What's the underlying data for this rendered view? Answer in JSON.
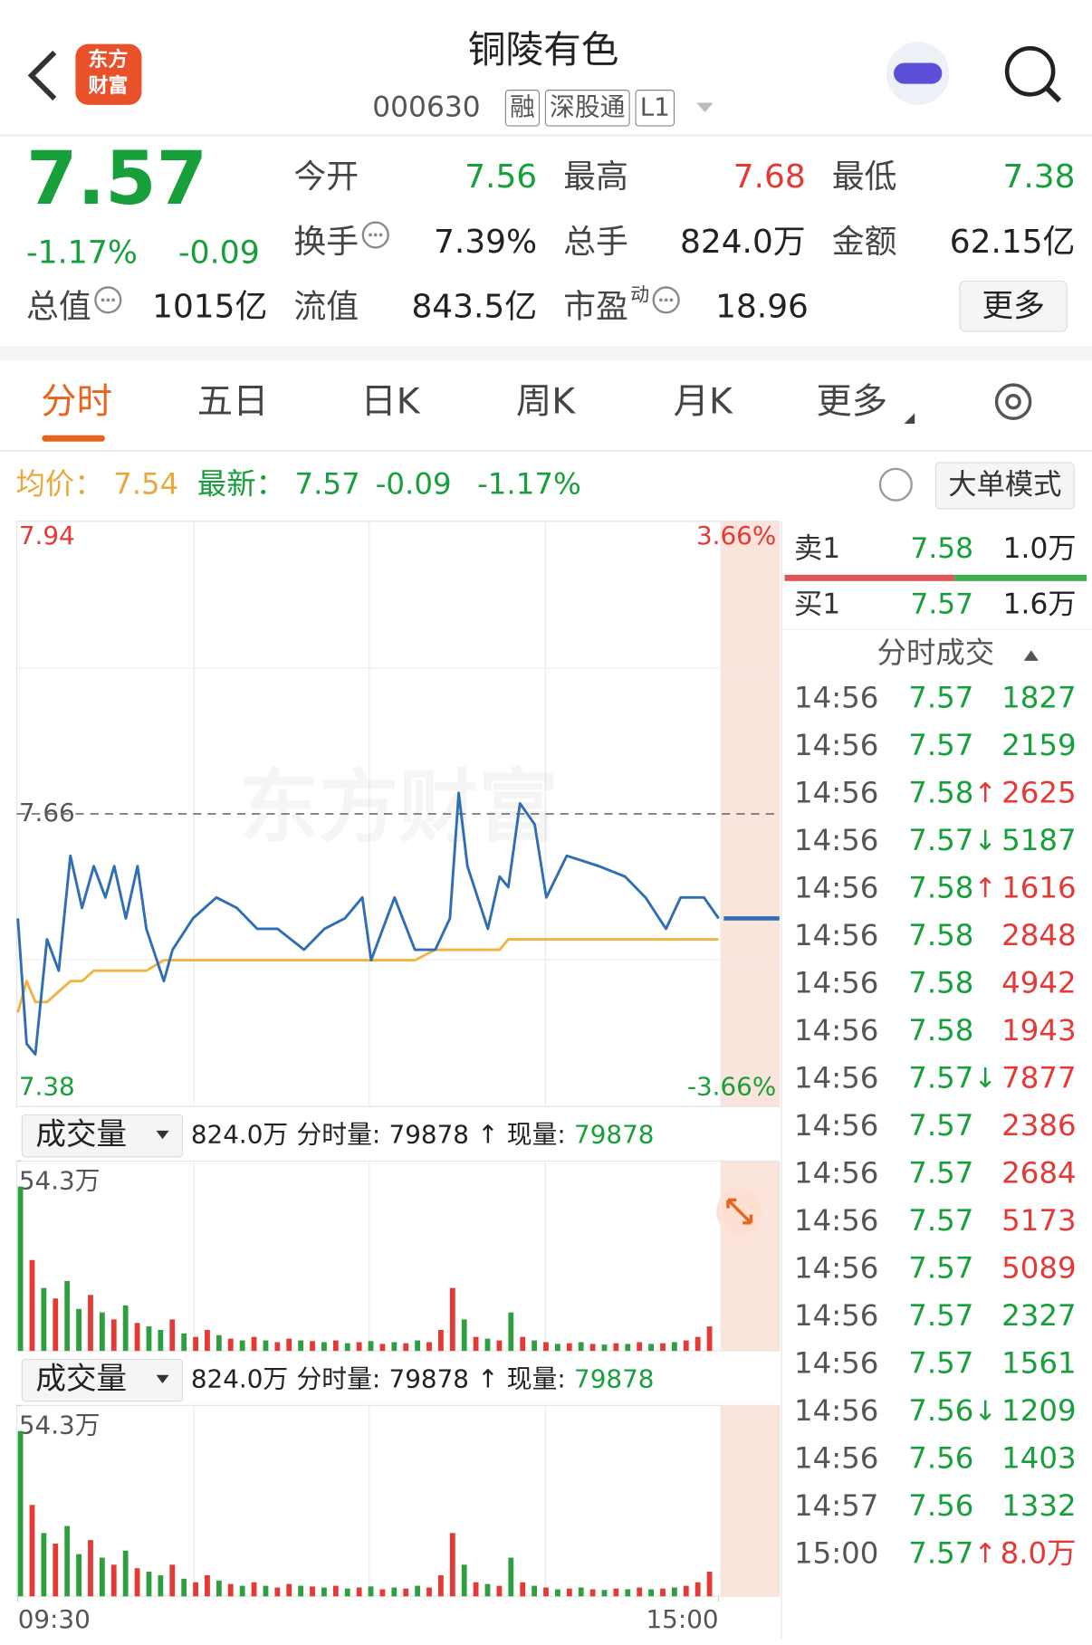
{
  "header": {
    "title": "铜陵有色",
    "code": "000630",
    "tags": [
      "融",
      "深股通",
      "L1"
    ],
    "logo": [
      "东方",
      "财富"
    ]
  },
  "quote": {
    "price": "7.57",
    "change_pct": "-1.17%",
    "change": "-0.09",
    "stats": [
      {
        "label": "今开",
        "value": "7.56",
        "color": "#17a03a"
      },
      {
        "label": "最高",
        "value": "7.68",
        "color": "#e53935"
      },
      {
        "label": "最低",
        "value": "7.38",
        "color": "#17a03a"
      },
      {
        "label": "换手",
        "value": "7.39%"
      },
      {
        "label": "总手",
        "value": "824.0万"
      },
      {
        "label": "金额",
        "value": "62.15亿"
      },
      {
        "label": "总值",
        "value": "1015亿"
      },
      {
        "label": "流值",
        "value": "843.5亿"
      },
      {
        "label": "市盈",
        "label_sup": "动",
        "value": "18.96"
      }
    ],
    "more": "更多"
  },
  "tabs": [
    "分时",
    "五日",
    "日K",
    "周K",
    "月K",
    "更多"
  ],
  "info_bar": {
    "avg_label": "均价：",
    "avg": "7.54",
    "latest_label": "最新：",
    "latest": "7.57",
    "change": "-0.09",
    "change_pct": "-1.17%",
    "mode_button": "大单模式"
  },
  "order_book": [
    {
      "label": "卖1",
      "price": "7.58",
      "volume": "1.0万"
    },
    {
      "label": "买1",
      "price": "7.57",
      "volume": "1.6万"
    }
  ],
  "trades": {
    "title": "分时成交",
    "rows": [
      {
        "time": "14:56",
        "price": "7.57",
        "volume": "1827",
        "color": "#17a03a"
      },
      {
        "time": "14:56",
        "price": "7.57",
        "volume": "2159",
        "color": "#17a03a"
      },
      {
        "time": "14:56",
        "price": "7.58",
        "arrow": "↑",
        "arrow_color": "#e53935",
        "volume": "2625",
        "color": "#e53935"
      },
      {
        "time": "14:56",
        "price": "7.57",
        "arrow": "↓",
        "arrow_color": "#17a03a",
        "volume": "5187",
        "color": "#17a03a"
      },
      {
        "time": "14:56",
        "price": "7.58",
        "arrow": "↑",
        "arrow_color": "#e53935",
        "volume": "1616",
        "color": "#e53935"
      },
      {
        "time": "14:56",
        "price": "7.58",
        "volume": "2848",
        "color": "#e53935"
      },
      {
        "time": "14:56",
        "price": "7.58",
        "volume": "4942",
        "color": "#e53935"
      },
      {
        "time": "14:56",
        "price": "7.58",
        "volume": "1943",
        "color": "#e53935"
      },
      {
        "time": "14:56",
        "price": "7.57",
        "arrow": "↓",
        "arrow_color": "#17a03a",
        "volume": "7877",
        "color": "#e53935"
      },
      {
        "time": "14:56",
        "price": "7.57",
        "volume": "2386",
        "color": "#e53935"
      },
      {
        "time": "14:56",
        "price": "7.57",
        "volume": "2684",
        "color": "#e53935"
      },
      {
        "time": "14:56",
        "price": "7.57",
        "volume": "5173",
        "color": "#e53935"
      },
      {
        "time": "14:56",
        "price": "7.57",
        "volume": "5089",
        "color": "#e53935"
      },
      {
        "time": "14:56",
        "price": "7.57",
        "volume": "2327",
        "color": "#17a03a"
      },
      {
        "time": "14:56",
        "price": "7.57",
        "volume": "1561",
        "color": "#17a03a"
      },
      {
        "time": "14:56",
        "price": "7.56",
        "arrow": "↓",
        "arrow_color": "#17a03a",
        "volume": "1209",
        "color": "#17a03a"
      },
      {
        "time": "14:56",
        "price": "7.56",
        "volume": "1403",
        "color": "#17a03a"
      },
      {
        "time": "14:57",
        "price": "7.56",
        "volume": "1332",
        "color": "#17a03a"
      },
      {
        "time": "15:00",
        "price": "7.57",
        "arrow": "↑",
        "arrow_color": "#e53935",
        "volume": "8.0万",
        "color": "#e53935"
      }
    ]
  },
  "chart_data": [
    {
      "type": "line",
      "watermark": "东方财富",
      "xlim": [
        0,
        240
      ],
      "ylim": [
        7.38,
        7.94
      ],
      "yticks": [
        7.38,
        7.66,
        7.94
      ],
      "reference": 7.66,
      "y2lim": [
        -3.66,
        3.66
      ],
      "y2ticks": [
        {
          "value": -3.66,
          "label": "-3.66%"
        },
        {
          "value": 3.66,
          "label": "3.66%"
        }
      ],
      "x": [
        0,
        3,
        6,
        10,
        14,
        18,
        22,
        26,
        30,
        33,
        37,
        41,
        44,
        50,
        53,
        60,
        68,
        75,
        82,
        89,
        98,
        105,
        112,
        118,
        121,
        129,
        136,
        143,
        148,
        151,
        154,
        161,
        165,
        168,
        172,
        177,
        181,
        188,
        199,
        208,
        215,
        222,
        227,
        235,
        240
      ],
      "series": [
        {
          "color": "#2f6db5",
          "values": [
            7.56,
            7.44,
            7.43,
            7.54,
            7.51,
            7.62,
            7.57,
            7.61,
            7.58,
            7.61,
            7.56,
            7.61,
            7.55,
            7.5,
            7.53,
            7.56,
            7.58,
            7.57,
            7.55,
            7.55,
            7.53,
            7.55,
            7.56,
            7.58,
            7.52,
            7.58,
            7.53,
            7.53,
            7.56,
            7.68,
            7.61,
            7.55,
            7.6,
            7.59,
            7.67,
            7.65,
            7.58,
            7.62,
            7.61,
            7.6,
            7.58,
            7.55,
            7.58,
            7.58,
            7.56
          ]
        },
        {
          "color": "#f0b441",
          "values": [
            7.47,
            7.5,
            7.48,
            7.48,
            7.49,
            7.5,
            7.5,
            7.51,
            7.51,
            7.51,
            7.51,
            7.51,
            7.51,
            7.52,
            7.52,
            7.52,
            7.52,
            7.52,
            7.52,
            7.52,
            7.52,
            7.52,
            7.52,
            7.52,
            7.52,
            7.52,
            7.52,
            7.53,
            7.53,
            7.53,
            7.53,
            7.53,
            7.53,
            7.54,
            7.54,
            7.54,
            7.54,
            7.54,
            7.54,
            7.54,
            7.54,
            7.54,
            7.54,
            7.54,
            7.54
          ]
        }
      ]
    },
    {
      "type": "bar",
      "selector": "成交量",
      "total": "824.0万",
      "minute_label": "分时量:",
      "minute_value": "79878",
      "arrow": "↑",
      "current_label": "现量:",
      "current_value": "79878",
      "xlim": [
        0,
        240
      ],
      "xticks": [
        {
          "value": 0,
          "label": "09:30"
        },
        {
          "value": 240,
          "label": "15:00"
        }
      ],
      "ylim": [
        0,
        543000
      ],
      "yticks": [
        {
          "value": 543000,
          "label": "54.3万"
        }
      ],
      "x": [
        0,
        4,
        8,
        12,
        16,
        20,
        24,
        28,
        32,
        36,
        40,
        44,
        48,
        52,
        56,
        60,
        64,
        68,
        72,
        76,
        80,
        84,
        88,
        92,
        96,
        100,
        104,
        108,
        112,
        116,
        120,
        124,
        128,
        132,
        136,
        140,
        144,
        148,
        152,
        156,
        160,
        164,
        168,
        172,
        176,
        180,
        184,
        188,
        192,
        196,
        200,
        204,
        208,
        212,
        216,
        220,
        224,
        228,
        232,
        236
      ],
      "values": [
        470000,
        260000,
        180000,
        150000,
        200000,
        120000,
        160000,
        110000,
        90000,
        130000,
        80000,
        70000,
        60000,
        90000,
        50000,
        40000,
        60000,
        45000,
        35000,
        30000,
        40000,
        30000,
        25000,
        35000,
        30000,
        28000,
        25000,
        30000,
        22000,
        25000,
        28000,
        20000,
        25000,
        22000,
        30000,
        25000,
        60000,
        180000,
        90000,
        40000,
        35000,
        30000,
        110000,
        40000,
        30000,
        25000,
        20000,
        22000,
        25000,
        20000,
        18000,
        22000,
        20000,
        25000,
        20000,
        22000,
        25000,
        30000,
        40000,
        70000
      ],
      "colors": [
        "#2e9e3e",
        "#e53935",
        "#2e9e3e",
        "#e53935",
        "#2e9e3e",
        "#2e9e3e",
        "#e53935",
        "#2e9e3e",
        "#e53935",
        "#2e9e3e",
        "#e53935",
        "#2e9e3e",
        "#2e9e3e",
        "#e53935",
        "#2e9e3e",
        "#e53935",
        "#e53935",
        "#2e9e3e",
        "#e53935",
        "#2e9e3e",
        "#e53935",
        "#2e9e3e",
        "#e53935",
        "#e53935",
        "#2e9e3e",
        "#e53935",
        "#2e9e3e",
        "#e53935",
        "#2e9e3e",
        "#e53935",
        "#2e9e3e",
        "#e53935",
        "#2e9e3e",
        "#e53935",
        "#2e9e3e",
        "#e53935",
        "#e53935",
        "#e53935",
        "#2e9e3e",
        "#e53935",
        "#2e9e3e",
        "#e53935",
        "#2e9e3e",
        "#e53935",
        "#2e9e3e",
        "#e53935",
        "#2e9e3e",
        "#e53935",
        "#2e9e3e",
        "#e53935",
        "#2e9e3e",
        "#e53935",
        "#2e9e3e",
        "#e53935",
        "#2e9e3e",
        "#e53935",
        "#2e9e3e",
        "#e53935",
        "#e53935",
        "#e53935"
      ]
    }
  ]
}
